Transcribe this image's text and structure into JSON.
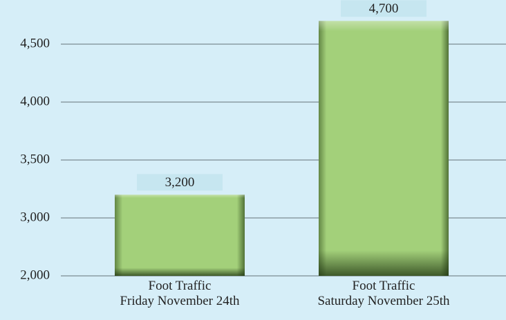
{
  "chart_data": {
    "type": "bar",
    "categories": [
      "Foot Traffic\nFriday November 24th",
      "Foot Traffic\nSaturday November 25th"
    ],
    "values": [
      3200,
      4700
    ],
    "value_labels": [
      "3,200",
      "4,700"
    ],
    "color": "#a3d07a",
    "ylim": [
      2000,
      4750
    ],
    "yticks": [
      {
        "value": 2000,
        "label": "2,000"
      },
      {
        "value": 3000,
        "label": "3,000"
      },
      {
        "value": 3500,
        "label": "3,500"
      },
      {
        "value": 4000,
        "label": "4,000"
      },
      {
        "value": 4500,
        "label": "4,500"
      }
    ],
    "grid": true
  }
}
